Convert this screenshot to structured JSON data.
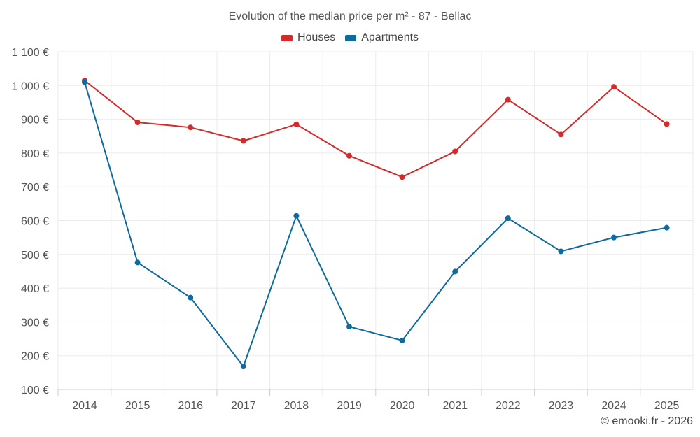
{
  "chart_data": {
    "type": "line",
    "title": "Evolution of the median price per m² - 87 - Bellac",
    "xlabel": "",
    "ylabel": "",
    "categories": [
      "2014",
      "2015",
      "2016",
      "2017",
      "2018",
      "2019",
      "2020",
      "2021",
      "2022",
      "2023",
      "2024",
      "2025"
    ],
    "series": [
      {
        "name": "Houses",
        "color": "#d42a2a",
        "values": [
          1015,
          891,
          876,
          836,
          885,
          792,
          729,
          805,
          958,
          855,
          996,
          886
        ]
      },
      {
        "name": "Apartments",
        "color": "#0f6a9e",
        "values": [
          1010,
          476,
          372,
          168,
          614,
          286,
          245,
          449,
          607,
          509,
          550,
          579
        ]
      }
    ],
    "ylim": [
      100,
      1100
    ],
    "yticks": [
      100,
      200,
      300,
      400,
      500,
      600,
      700,
      800,
      900,
      1000,
      1100
    ],
    "ytick_labels": [
      "100 €",
      "200 €",
      "300 €",
      "400 €",
      "500 €",
      "600 €",
      "700 €",
      "800 €",
      "900 €",
      "1 000 €",
      "1 100 €"
    ],
    "grid": true,
    "legend_position": "top-center"
  },
  "copyright": "© emooki.fr - 2026"
}
